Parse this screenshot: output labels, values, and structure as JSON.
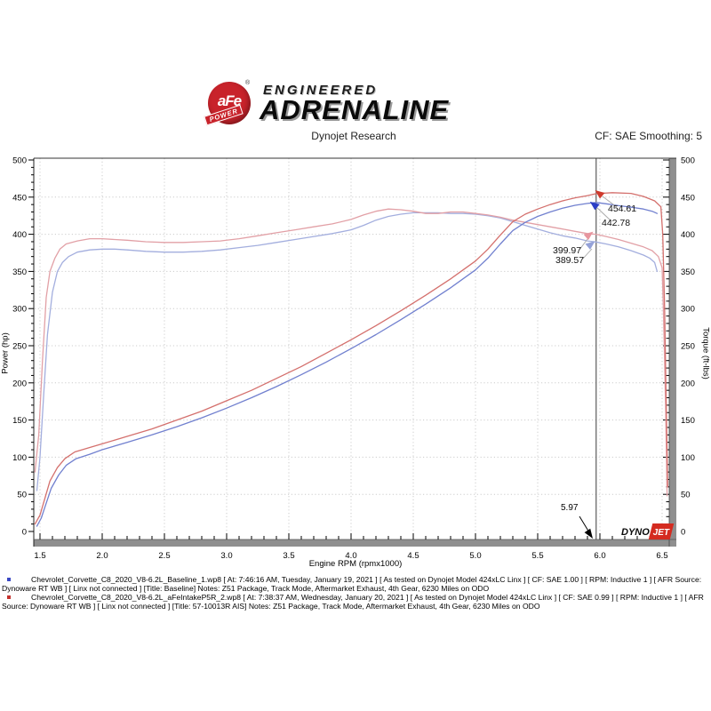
{
  "header": {
    "badge_brand": "aFe",
    "badge_sub": "POWER",
    "badge_reg": "®",
    "tagline_top": "ENGINEERED",
    "tagline_main": "ADRENALINE",
    "subtitle": "Dynojet Research",
    "cf_label": "CF: SAE  Smoothing: 5"
  },
  "chart": {
    "watermark": {
      "dyno": "DYNO",
      "jet": "JET"
    }
  },
  "chart_data": {
    "type": "line",
    "xlabel": "Engine RPM (rpmx1000)",
    "ylabel": "Power (hp)",
    "ylabel_right": "Torque (ft-lbs)",
    "x_min": 1.45,
    "x_max": 6.55,
    "x_tick_start": 1.5,
    "x_tick_end": 6.5,
    "x_tick_step": 0.5,
    "x_minor_step": 0.1,
    "y_min": 0,
    "y_max": 500,
    "y_tick_step": 50,
    "y_minor_step": 10,
    "grid": true,
    "cursor_rpm": 5.97,
    "cursor_label": "5.97",
    "callouts": [
      {
        "label": "454.61",
        "value": 454.61,
        "color": "#cf3a2d",
        "series": "power_afe"
      },
      {
        "label": "442.78",
        "value": 442.78,
        "color": "#2b3ec5",
        "series": "power_baseline"
      },
      {
        "label": "399.97",
        "value": 399.97,
        "color": "#e7959e",
        "series": "torque_afe"
      },
      {
        "label": "389.57",
        "value": 389.57,
        "color": "#95a2d8",
        "series": "torque_baseline"
      }
    ],
    "series": [
      {
        "name": "torque_baseline",
        "axis": "right",
        "color": "#a3aede",
        "points": [
          [
            1.475,
            55
          ],
          [
            1.5,
            100
          ],
          [
            1.53,
            185
          ],
          [
            1.56,
            265
          ],
          [
            1.6,
            322
          ],
          [
            1.64,
            350
          ],
          [
            1.68,
            362
          ],
          [
            1.73,
            370
          ],
          [
            1.8,
            376
          ],
          [
            1.9,
            379
          ],
          [
            2.0,
            380
          ],
          [
            2.1,
            380
          ],
          [
            2.2,
            379
          ],
          [
            2.35,
            377
          ],
          [
            2.5,
            376
          ],
          [
            2.65,
            376
          ],
          [
            2.8,
            377
          ],
          [
            2.95,
            379
          ],
          [
            3.1,
            382
          ],
          [
            3.25,
            385
          ],
          [
            3.4,
            389
          ],
          [
            3.55,
            393
          ],
          [
            3.7,
            397
          ],
          [
            3.85,
            401
          ],
          [
            4.0,
            406
          ],
          [
            4.1,
            412
          ],
          [
            4.2,
            419
          ],
          [
            4.3,
            424
          ],
          [
            4.4,
            427
          ],
          [
            4.5,
            429
          ],
          [
            4.6,
            429
          ],
          [
            4.7,
            429
          ],
          [
            4.8,
            428
          ],
          [
            4.9,
            428
          ],
          [
            5.0,
            427
          ],
          [
            5.1,
            425
          ],
          [
            5.2,
            422
          ],
          [
            5.3,
            417
          ],
          [
            5.4,
            412
          ],
          [
            5.5,
            407
          ],
          [
            5.6,
            402
          ],
          [
            5.7,
            398
          ],
          [
            5.8,
            395
          ],
          [
            5.9,
            391
          ],
          [
            5.97,
            389.57
          ],
          [
            6.05,
            387
          ],
          [
            6.15,
            383
          ],
          [
            6.25,
            378
          ],
          [
            6.35,
            372
          ],
          [
            6.4,
            368
          ],
          [
            6.44,
            362
          ],
          [
            6.46,
            350
          ]
        ]
      },
      {
        "name": "torque_afe",
        "axis": "right",
        "color": "#e2a0a6",
        "points": [
          [
            1.46,
            80
          ],
          [
            1.49,
            130
          ],
          [
            1.52,
            230
          ],
          [
            1.55,
            315
          ],
          [
            1.58,
            350
          ],
          [
            1.62,
            368
          ],
          [
            1.66,
            380
          ],
          [
            1.71,
            387
          ],
          [
            1.8,
            391
          ],
          [
            1.9,
            394
          ],
          [
            2.0,
            394
          ],
          [
            2.1,
            393
          ],
          [
            2.2,
            392
          ],
          [
            2.35,
            390
          ],
          [
            2.5,
            389
          ],
          [
            2.65,
            389
          ],
          [
            2.8,
            390
          ],
          [
            2.95,
            391
          ],
          [
            3.1,
            394
          ],
          [
            3.25,
            398
          ],
          [
            3.4,
            402
          ],
          [
            3.55,
            406
          ],
          [
            3.7,
            410
          ],
          [
            3.85,
            414
          ],
          [
            4.0,
            420
          ],
          [
            4.1,
            426
          ],
          [
            4.2,
            431
          ],
          [
            4.3,
            434
          ],
          [
            4.4,
            433
          ],
          [
            4.5,
            431
          ],
          [
            4.6,
            428
          ],
          [
            4.7,
            428
          ],
          [
            4.8,
            430
          ],
          [
            4.9,
            430
          ],
          [
            5.0,
            428
          ],
          [
            5.1,
            426
          ],
          [
            5.2,
            423
          ],
          [
            5.3,
            419
          ],
          [
            5.4,
            416
          ],
          [
            5.5,
            413
          ],
          [
            5.6,
            410
          ],
          [
            5.7,
            407
          ],
          [
            5.8,
            404
          ],
          [
            5.9,
            401
          ],
          [
            5.97,
            399.97
          ],
          [
            6.05,
            397
          ],
          [
            6.15,
            393
          ],
          [
            6.25,
            388
          ],
          [
            6.35,
            383
          ],
          [
            6.42,
            378
          ],
          [
            6.47,
            370
          ],
          [
            6.5,
            355
          ],
          [
            6.51,
            300
          ],
          [
            6.52,
            230
          ],
          [
            6.53,
            150
          ],
          [
            6.54,
            48
          ]
        ]
      },
      {
        "name": "power_baseline",
        "axis": "left",
        "color": "#7180cf",
        "points": [
          [
            1.475,
            7
          ],
          [
            1.51,
            18
          ],
          [
            1.55,
            38
          ],
          [
            1.59,
            58
          ],
          [
            1.65,
            76
          ],
          [
            1.71,
            89
          ],
          [
            1.79,
            98
          ],
          [
            1.9,
            104
          ],
          [
            2.0,
            110
          ],
          [
            2.2,
            120
          ],
          [
            2.4,
            130
          ],
          [
            2.6,
            141
          ],
          [
            2.8,
            153
          ],
          [
            3.0,
            166
          ],
          [
            3.2,
            180
          ],
          [
            3.4,
            195
          ],
          [
            3.6,
            211
          ],
          [
            3.8,
            228
          ],
          [
            4.0,
            246
          ],
          [
            4.2,
            265
          ],
          [
            4.4,
            285
          ],
          [
            4.6,
            306
          ],
          [
            4.8,
            328
          ],
          [
            5.0,
            352
          ],
          [
            5.1,
            368
          ],
          [
            5.2,
            387
          ],
          [
            5.3,
            405
          ],
          [
            5.4,
            416
          ],
          [
            5.5,
            424
          ],
          [
            5.6,
            430
          ],
          [
            5.7,
            435
          ],
          [
            5.8,
            439
          ],
          [
            5.9,
            441.5
          ],
          [
            5.97,
            442.78
          ],
          [
            6.05,
            441
          ],
          [
            6.15,
            438.5
          ],
          [
            6.25,
            436.5
          ],
          [
            6.35,
            434
          ],
          [
            6.42,
            431
          ],
          [
            6.46,
            428
          ]
        ]
      },
      {
        "name": "power_afe",
        "axis": "left",
        "color": "#d4706d",
        "points": [
          [
            1.46,
            10
          ],
          [
            1.5,
            22
          ],
          [
            1.54,
            45
          ],
          [
            1.58,
            68
          ],
          [
            1.64,
            86
          ],
          [
            1.7,
            98
          ],
          [
            1.78,
            107
          ],
          [
            1.9,
            113
          ],
          [
            2.0,
            118
          ],
          [
            2.2,
            128
          ],
          [
            2.4,
            138
          ],
          [
            2.6,
            150
          ],
          [
            2.8,
            162
          ],
          [
            3.0,
            176
          ],
          [
            3.2,
            190
          ],
          [
            3.4,
            206
          ],
          [
            3.6,
            222
          ],
          [
            3.8,
            240
          ],
          [
            4.0,
            258
          ],
          [
            4.2,
            277
          ],
          [
            4.4,
            297
          ],
          [
            4.6,
            318
          ],
          [
            4.8,
            340
          ],
          [
            5.0,
            364
          ],
          [
            5.1,
            380
          ],
          [
            5.2,
            399
          ],
          [
            5.3,
            417
          ],
          [
            5.4,
            427
          ],
          [
            5.5,
            434
          ],
          [
            5.6,
            440
          ],
          [
            5.7,
            445
          ],
          [
            5.8,
            449
          ],
          [
            5.9,
            452
          ],
          [
            5.97,
            454.61
          ],
          [
            6.1,
            456
          ],
          [
            6.25,
            455
          ],
          [
            6.35,
            451
          ],
          [
            6.44,
            445
          ],
          [
            6.49,
            437
          ],
          [
            6.505,
            400
          ],
          [
            6.52,
            300
          ],
          [
            6.53,
            200
          ],
          [
            6.545,
            60
          ]
        ]
      }
    ]
  },
  "footer": {
    "runs": [
      {
        "color": "#3a48c4",
        "text": "Chevrolet_Corvette_C8_2020_V8-6.2L_Baseline_1.wp8 [ At: 7:46:16 AM, Tuesday, January 19, 2021 ] [ As tested on Dynojet Model 424xLC Linx ] [ CF: SAE 1.00 ] [ RPM: Inductive 1 ] [ AFR Source: Dynoware RT WB ] [ Linx not connected ] [Title: Baseline]  Notes: Z51 Package, Track Mode, Aftermarket Exhaust, 4th Gear, 6230 Miles on ODO"
      },
      {
        "color": "#c4322e",
        "text": "Chevrolet_Corvette_C8_2020_V8-6.2L_aFeIntakeP5R_2.wp8 [ At: 7:38:37 AM, Wednesday, January 20, 2021 ] [ As tested on Dynojet Model 424xLC Linx ] [ CF: SAE 0.99 ] [ RPM: Inductive 1 ] [ AFR Source: Dynoware RT WB ] [ Linx not connected ] [Title: 57-10013R AIS]  Notes: Z51 Package, Track Mode, Aftermarket Exhaust, 4th Gear, 6230 Miles on ODO"
      }
    ]
  }
}
